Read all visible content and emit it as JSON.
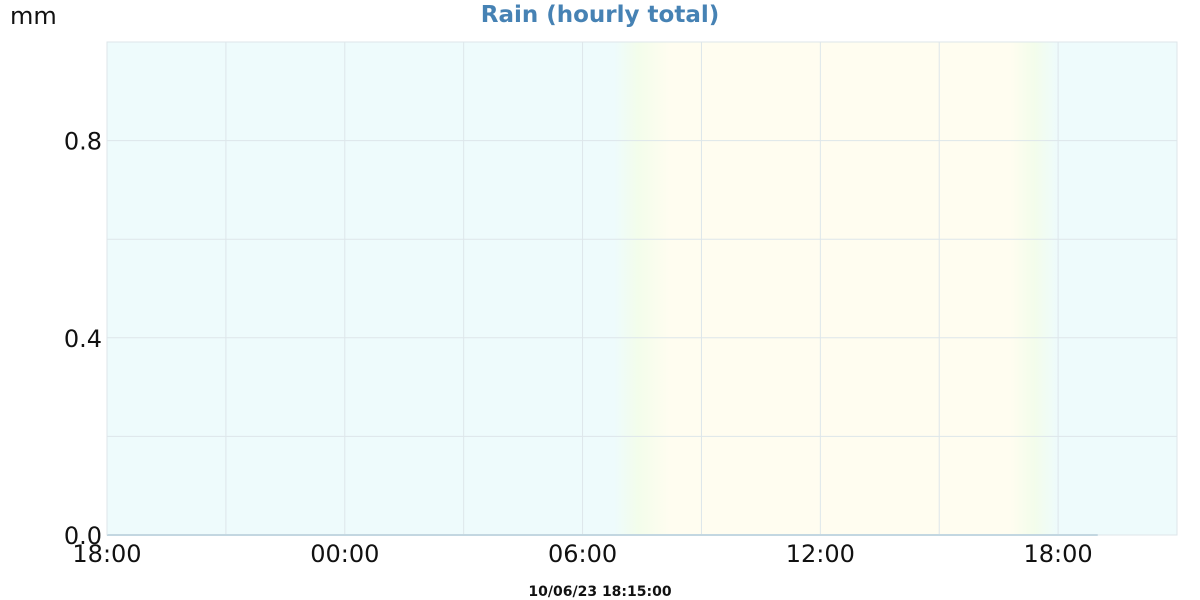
{
  "unit_label": "mm",
  "timestamp": "10/06/23 18:15:00",
  "colors": {
    "title": "#4682b4",
    "night_background": "#eefbfc",
    "day_background": "#fffdf0",
    "twilight_tint": "#f3fdeb",
    "grid": "#dde6ea",
    "series_line": "#a9c8d8"
  },
  "chart_data": {
    "type": "line",
    "title": "Rain (hourly total)",
    "xlabel": "",
    "ylabel": "mm",
    "x_ticks": [
      "18:00",
      "00:00",
      "06:00",
      "12:00",
      "18:00"
    ],
    "y_ticks": [
      "0.0",
      "0.4",
      "0.8"
    ],
    "xlim_hours": [
      0,
      27
    ],
    "ylim": [
      0,
      1.0
    ],
    "grid": true,
    "daylight_hours": [
      14,
      23
    ],
    "series": [
      {
        "x_hours": [
          0,
          25
        ],
        "values": [
          0,
          0
        ]
      }
    ]
  }
}
